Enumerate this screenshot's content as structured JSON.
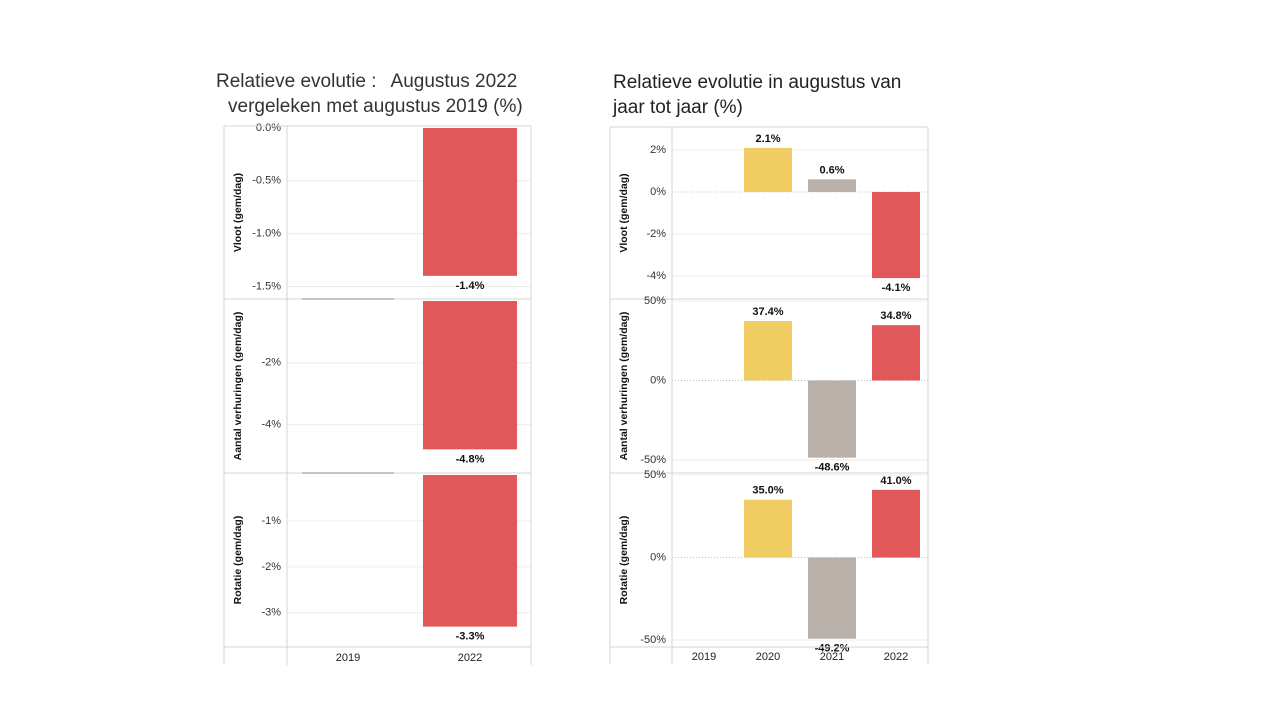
{
  "colors": {
    "red": "#e0585a",
    "yellow": "#f0cd63",
    "gray": "#b9b0aa",
    "axis": "#d4d4d4",
    "grid": "#ececec"
  },
  "left_title": {
    "line1_prefix": "Relatieve evolutie :",
    "line1_suffix": "Augustus 2022",
    "line2": "vergeleken met augustus 2019 (%)"
  },
  "right_title": {
    "line1": "Relatieve evolutie in augustus van",
    "line2": "jaar tot jaar (%)"
  },
  "chart_data": [
    {
      "type": "bar",
      "title": "Relatieve evolutie : Augustus 2022 vergeleken met augustus 2019 (%)",
      "categories": [
        "2019",
        "2022"
      ],
      "panels": [
        {
          "ylabel": "Vloot (gem/dag)",
          "values": [
            0,
            -1.4
          ],
          "labels": [
            "",
            "-1.4%"
          ],
          "colors": [
            "gray",
            "red"
          ],
          "ylim": [
            -1.6,
            0
          ],
          "ticks": [
            0,
            -0.5,
            -1.0,
            -1.5
          ],
          "tick_labels": [
            "0.0%",
            "-0.5%",
            "-1.0%",
            "-1.5%"
          ]
        },
        {
          "ylabel": "Aantal verhuringen (gem/dag)",
          "values": [
            0,
            -4.8
          ],
          "labels": [
            "",
            "-4.8%"
          ],
          "colors": [
            "gray",
            "red"
          ],
          "ylim": [
            -5.5,
            0
          ],
          "ticks": [
            -2,
            -4
          ],
          "tick_labels": [
            "-2%",
            "-4%"
          ]
        },
        {
          "ylabel": "Rotatie (gem/dag)",
          "values": [
            0,
            -3.3
          ],
          "labels": [
            "",
            "-3.3%"
          ],
          "colors": [
            "gray",
            "red"
          ],
          "ylim": [
            -3.7,
            0
          ],
          "ticks": [
            -1,
            -2,
            -3
          ],
          "tick_labels": [
            "-1%",
            "-2%",
            "-3%"
          ]
        }
      ]
    },
    {
      "type": "bar",
      "title": "Relatieve evolutie in augustus van jaar tot jaar (%)",
      "categories": [
        "2019",
        "2020",
        "2021",
        "2022"
      ],
      "panels": [
        {
          "ylabel": "Vloot (gem/dag)",
          "values": [
            0,
            2.1,
            0.6,
            -4.1
          ],
          "labels": [
            "",
            "2.1%",
            "0.6%",
            "-4.1%"
          ],
          "colors": [
            "gray",
            "yellow",
            "gray",
            "red"
          ],
          "ylim": [
            -5.0,
            3.0
          ],
          "ticks": [
            2,
            0,
            -2,
            -4
          ],
          "tick_labels": [
            "2%",
            "0%",
            "-2%",
            "-4%"
          ]
        },
        {
          "ylabel": "Aantal verhuringen (gem/dag)",
          "values": [
            0,
            37.4,
            -48.6,
            34.8
          ],
          "labels": [
            "",
            "37.4%",
            "-48.6%",
            "34.8%"
          ],
          "colors": [
            "gray",
            "yellow",
            "gray",
            "red"
          ],
          "ylim": [
            -57,
            50
          ],
          "ticks": [
            50,
            0,
            -50
          ],
          "tick_labels": [
            "50%",
            "0%",
            "-50%"
          ]
        },
        {
          "ylabel": "Rotatie (gem/dag)",
          "values": [
            0,
            35.0,
            -49.2,
            41.0
          ],
          "labels": [
            "",
            "35.0%",
            "-49.2%",
            "41.0%"
          ],
          "colors": [
            "gray",
            "yellow",
            "gray",
            "red"
          ],
          "ylim": [
            -53,
            50
          ],
          "ticks": [
            50,
            0,
            -50
          ],
          "tick_labels": [
            "50%",
            "0%",
            "-50%"
          ]
        }
      ]
    }
  ]
}
